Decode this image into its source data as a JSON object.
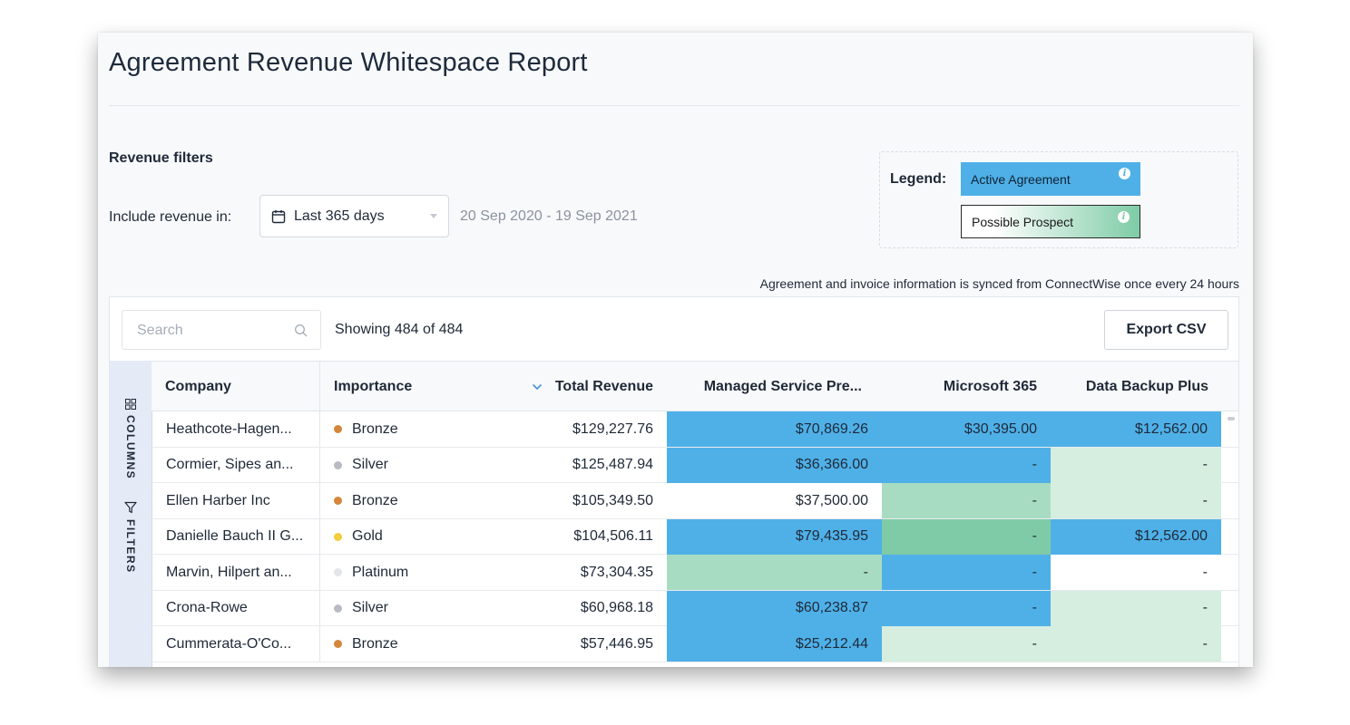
{
  "page": {
    "title": "Agreement Revenue Whitespace Report"
  },
  "filters": {
    "section_label": "Revenue filters",
    "include_label": "Include revenue in:",
    "period_value": "Last 365 days",
    "date_range": "20 Sep 2020 - 19 Sep 2021"
  },
  "legend": {
    "label": "Legend:",
    "active": "Active Agreement",
    "prospect": "Possible Prospect",
    "info_glyph": "i"
  },
  "sync_note": "Agreement and invoice information is synced from ConnectWise once every 24 hours",
  "toolbar": {
    "search_placeholder": "Search",
    "showing": "Showing 484 of 484",
    "export_label": "Export CSV"
  },
  "side_panel": {
    "columns_label": "COLUMNS",
    "filters_label": "FILTERS"
  },
  "table": {
    "headers": {
      "company": "Company",
      "importance": "Importance",
      "total": "Total Revenue",
      "msp": "Managed Service Pre...",
      "m365": "Microsoft 365",
      "dbp": "Data Backup Plus"
    },
    "rows": [
      {
        "company": "Heathcote-Hagen...",
        "importance": "Bronze",
        "total": "$129,227.76",
        "msp": "$70,869.26",
        "m365": "$30,395.00",
        "dbp": "$12,562.00"
      },
      {
        "company": "Cormier, Sipes an...",
        "importance": "Silver",
        "total": "$125,487.94",
        "msp": "$36,366.00",
        "m365": "-",
        "dbp": "-"
      },
      {
        "company": "Ellen Harber Inc",
        "importance": "Bronze",
        "total": "$105,349.50",
        "msp": "$37,500.00",
        "m365": "-",
        "dbp": "-"
      },
      {
        "company": "Danielle Bauch II G...",
        "importance": "Gold",
        "total": "$104,506.11",
        "msp": "$79,435.95",
        "m365": "-",
        "dbp": "$12,562.00"
      },
      {
        "company": "Marvin, Hilpert an...",
        "importance": "Platinum",
        "total": "$73,304.35",
        "msp": "-",
        "m365": "-",
        "dbp": "-"
      },
      {
        "company": "Crona-Rowe",
        "importance": "Silver",
        "total": "$60,968.18",
        "msp": "$60,238.87",
        "m365": "-",
        "dbp": "-"
      },
      {
        "company": "Cummerata-O'Co...",
        "importance": "Bronze",
        "total": "$57,446.95",
        "msp": "$25,212.44",
        "m365": "-",
        "dbp": "-"
      }
    ]
  },
  "colors": {
    "active": "#4fb0e8",
    "prospect_strong": "#80cba7",
    "prospect_medium": "#a8dcc2",
    "prospect_light": "#d5eedf",
    "none": "#ffffff",
    "bronze": "#d4873a",
    "silver": "#b8bcc2",
    "gold": "#f2cd3c",
    "platinum": "#e3e5e8"
  },
  "cell_states": [
    {
      "msp": "active",
      "m365": "active",
      "dbp": "active"
    },
    {
      "msp": "active",
      "m365": "active",
      "dbp": "prospect_light"
    },
    {
      "msp": "none",
      "m365": "prospect_medium",
      "dbp": "prospect_light"
    },
    {
      "msp": "active",
      "m365": "prospect_strong",
      "dbp": "active"
    },
    {
      "msp": "prospect_medium",
      "m365": "active",
      "dbp": "none"
    },
    {
      "msp": "active",
      "m365": "active",
      "dbp": "prospect_light"
    },
    {
      "msp": "active",
      "m365": "prospect_light",
      "dbp": "prospect_light"
    }
  ],
  "icons": {
    "calendar": "calendar-icon",
    "search": "search-icon",
    "columns": "columns-grid-icon",
    "filters": "filter-funnel-icon",
    "sort": "sort-desc-chevron-icon",
    "info": "info-icon"
  }
}
